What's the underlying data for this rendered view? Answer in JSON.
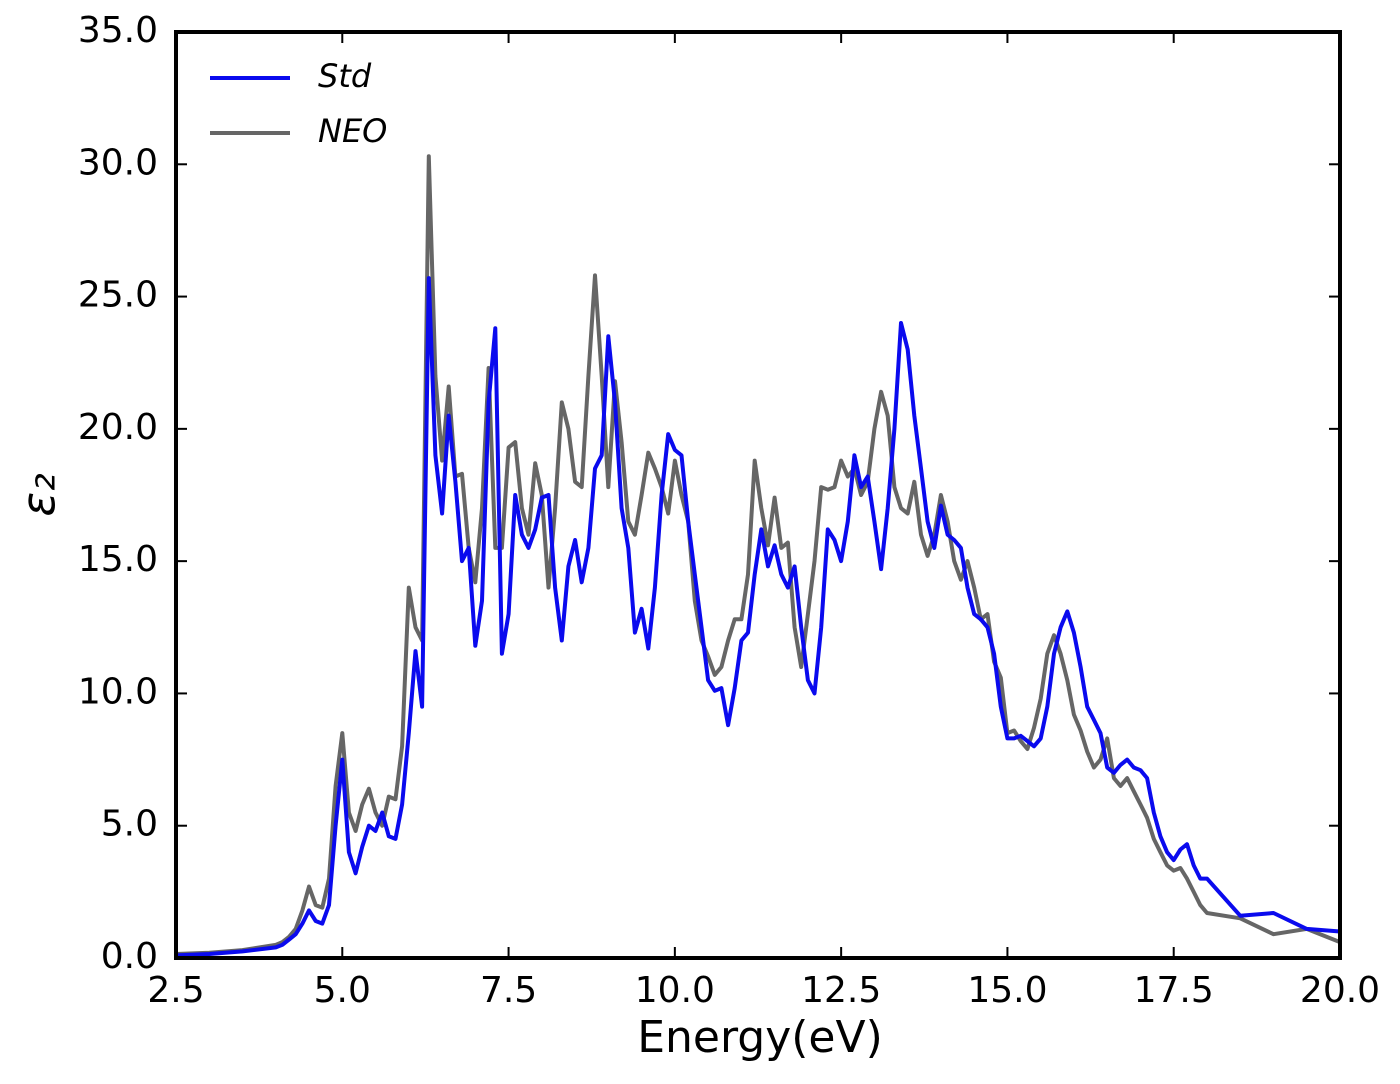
{
  "chart_data": {
    "type": "line",
    "xlabel": "Energy(eV)",
    "ylabel": "ε₂",
    "x": [
      2.5,
      3.0,
      3.5,
      4.0,
      4.1,
      4.2,
      4.3,
      4.4,
      4.5,
      4.6,
      4.7,
      4.8,
      4.9,
      5.0,
      5.1,
      5.2,
      5.3,
      5.4,
      5.5,
      5.6,
      5.7,
      5.8,
      5.9,
      6.0,
      6.1,
      6.2,
      6.3,
      6.4,
      6.5,
      6.6,
      6.7,
      6.8,
      6.9,
      7.0,
      7.1,
      7.2,
      7.3,
      7.4,
      7.5,
      7.6,
      7.7,
      7.8,
      7.9,
      8.0,
      8.1,
      8.2,
      8.3,
      8.4,
      8.5,
      8.6,
      8.7,
      8.8,
      8.9,
      9.0,
      9.1,
      9.2,
      9.3,
      9.4,
      9.5,
      9.6,
      9.7,
      9.8,
      9.9,
      10.0,
      10.1,
      10.2,
      10.3,
      10.4,
      10.5,
      10.6,
      10.7,
      10.8,
      10.9,
      11.0,
      11.1,
      11.2,
      11.3,
      11.4,
      11.5,
      11.6,
      11.7,
      11.8,
      11.9,
      12.0,
      12.1,
      12.2,
      12.3,
      12.4,
      12.5,
      12.6,
      12.7,
      12.8,
      12.9,
      13.0,
      13.1,
      13.2,
      13.3,
      13.4,
      13.5,
      13.6,
      13.7,
      13.8,
      13.9,
      14.0,
      14.1,
      14.2,
      14.3,
      14.4,
      14.5,
      14.6,
      14.7,
      14.8,
      14.9,
      15.0,
      15.1,
      15.2,
      15.3,
      15.4,
      15.5,
      15.6,
      15.7,
      15.8,
      15.9,
      16.0,
      16.1,
      16.2,
      16.3,
      16.4,
      16.5,
      16.6,
      16.7,
      16.8,
      16.9,
      17.0,
      17.1,
      17.2,
      17.3,
      17.4,
      17.5,
      17.6,
      17.7,
      17.8,
      17.9,
      18.0,
      18.5,
      19.0,
      19.5,
      20.0
    ],
    "series": [
      {
        "name": "Std",
        "color": "#0a0aee",
        "values": [
          0.1,
          0.15,
          0.25,
          0.4,
          0.5,
          0.7,
          0.9,
          1.3,
          1.8,
          1.4,
          1.3,
          2.0,
          5.0,
          7.5,
          4.0,
          3.2,
          4.2,
          5.0,
          4.8,
          5.5,
          4.6,
          4.5,
          5.8,
          8.5,
          11.6,
          9.5,
          25.7,
          19,
          16.8,
          20.5,
          18,
          15,
          15.5,
          11.8,
          13.5,
          21,
          23.8,
          11.5,
          13,
          17.5,
          16,
          15.5,
          16.2,
          17.4,
          17.5,
          14,
          12,
          14.8,
          15.8,
          14.2,
          15.5,
          18.5,
          19,
          23.5,
          21,
          17,
          15.5,
          12.3,
          13.2,
          11.7,
          14,
          17.5,
          19.8,
          19.2,
          19,
          16.5,
          14.5,
          12.5,
          10.5,
          10.1,
          10.2,
          8.8,
          10.2,
          12,
          12.3,
          14.5,
          16.2,
          14.8,
          15.6,
          14.5,
          14,
          14.8,
          12.5,
          10.5,
          10,
          12.5,
          16.2,
          15.8,
          15,
          16.5,
          19,
          17.8,
          18.2,
          16.5,
          14.7,
          17,
          20,
          24,
          23,
          20.5,
          18.5,
          16.5,
          15.5,
          17.1,
          16,
          15.8,
          15.5,
          14,
          13,
          12.8,
          12.5,
          11.5,
          9.5,
          8.3,
          8.3,
          8.4,
          8.2,
          8.0,
          8.3,
          9.5,
          11.5,
          12.5,
          13.1,
          12.3,
          11,
          9.5,
          9.0,
          8.5,
          7.2,
          7.0,
          7.3,
          7.5,
          7.2,
          7.1,
          6.8,
          5.5,
          4.6,
          4.0,
          3.7,
          4.1,
          4.3,
          3.5,
          3.0,
          3.0,
          1.6,
          1.7,
          1.1,
          1.0
        ]
      },
      {
        "name": "NEO",
        "color": "#666666",
        "values": [
          0.15,
          0.2,
          0.3,
          0.5,
          0.6,
          0.8,
          1.1,
          1.8,
          2.7,
          2.0,
          1.9,
          3.0,
          6.5,
          8.5,
          5.5,
          4.8,
          5.8,
          6.4,
          5.5,
          5.0,
          6.1,
          6.0,
          8.0,
          14.0,
          12.5,
          12.0,
          30.3,
          22,
          18.8,
          21.6,
          18.2,
          18.3,
          15.5,
          14.2,
          17,
          22.3,
          15.5,
          15.5,
          19.3,
          19.5,
          17,
          16,
          18.7,
          17.5,
          14,
          17,
          21,
          20,
          18,
          17.8,
          22,
          25.8,
          22,
          17.8,
          21.8,
          19.5,
          16.5,
          16,
          17.5,
          19.1,
          18.5,
          17.8,
          16.8,
          18.8,
          17.5,
          16.5,
          13.5,
          12,
          11.4,
          10.7,
          11,
          12,
          12.8,
          12.8,
          14.5,
          18.8,
          17,
          15.6,
          17.4,
          15.5,
          15.7,
          12.5,
          11,
          13,
          15,
          17.8,
          17.7,
          17.8,
          18.8,
          18.2,
          18.5,
          17.5,
          18,
          20,
          21.4,
          20.5,
          17.8,
          17,
          16.8,
          18,
          16,
          15.2,
          16,
          17.5,
          16.5,
          15,
          14.3,
          15,
          14,
          12.8,
          13,
          11.2,
          10.6,
          8.5,
          8.6,
          8.2,
          7.9,
          8.7,
          9.8,
          11.5,
          12.2,
          11.5,
          10.5,
          9.2,
          8.6,
          7.8,
          7.2,
          7.5,
          8.3,
          6.8,
          6.5,
          6.8,
          6.3,
          5.8,
          5.3,
          4.5,
          4.0,
          3.5,
          3.3,
          3.4,
          3.0,
          2.5,
          2.0,
          1.7,
          1.5,
          0.9,
          1.1,
          0.6
        ]
      }
    ],
    "xlim": [
      2.5,
      20.0
    ],
    "ylim": [
      0,
      35
    ],
    "xticks": [
      2.5,
      {
        "value": 5,
        "label": "5.0"
      },
      7.5,
      {
        "value": 10,
        "label": "10.0"
      },
      12.5,
      {
        "value": 15,
        "label": "15.0"
      },
      17.5,
      {
        "value": 20,
        "label": "20.0"
      }
    ],
    "yticks": [
      {
        "value": 0,
        "label": "0.0"
      },
      {
        "value": 5,
        "label": "5.0"
      },
      {
        "value": 10,
        "label": "10.0"
      },
      {
        "value": 15,
        "label": "15.0"
      },
      {
        "value": 20,
        "label": "20.0"
      },
      {
        "value": 25,
        "label": "25.0"
      },
      {
        "value": 30,
        "label": "30.0"
      },
      {
        "value": 35,
        "label": "35.0"
      }
    ],
    "legend": "upper left",
    "grid": false
  }
}
